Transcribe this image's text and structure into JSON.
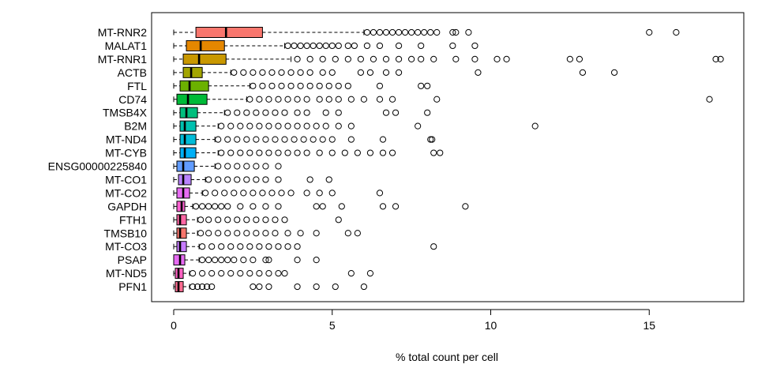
{
  "chart_data": {
    "type": "boxplot",
    "orientation": "horizontal",
    "xlabel": "% total count per cell",
    "ylabel": "",
    "title": "",
    "xlim": [
      -0.7,
      18
    ],
    "xticks": [
      0,
      5,
      10,
      15
    ],
    "grid": false,
    "series": [
      {
        "name": "MT-RNR2",
        "color": "#F8766D",
        "min": 0,
        "q1": 0.7,
        "median": 1.65,
        "q3": 2.8,
        "whisker_high": 6.0,
        "outliers": [
          6.1,
          6.3,
          6.5,
          6.7,
          6.9,
          7.1,
          7.3,
          7.5,
          7.7,
          7.9,
          8.1,
          8.3,
          8.8,
          8.9,
          9.3,
          15.0,
          15.85
        ]
      },
      {
        "name": "MALAT1",
        "color": "#E58700",
        "min": 0,
        "q1": 0.4,
        "median": 0.85,
        "q3": 1.6,
        "whisker_high": 3.5,
        "outliers": [
          3.6,
          3.8,
          4.0,
          4.2,
          4.4,
          4.6,
          4.8,
          5.0,
          5.2,
          5.5,
          5.7,
          6.1,
          6.5,
          7.1,
          7.8,
          8.8,
          9.5
        ]
      },
      {
        "name": "MT-RNR1",
        "color": "#C99800",
        "min": 0,
        "q1": 0.3,
        "median": 0.8,
        "q3": 1.65,
        "whisker_high": 3.7,
        "outliers": [
          3.9,
          4.3,
          4.7,
          5.1,
          5.5,
          5.9,
          6.3,
          6.7,
          7.1,
          7.5,
          7.8,
          8.2,
          8.9,
          9.5,
          10.2,
          10.5,
          12.5,
          12.8,
          17.1,
          17.25
        ]
      },
      {
        "name": "ACTB",
        "color": "#A3A500",
        "min": 0,
        "q1": 0.3,
        "median": 0.55,
        "q3": 0.9,
        "whisker_high": 1.8,
        "outliers": [
          1.9,
          2.2,
          2.5,
          2.8,
          3.1,
          3.4,
          3.7,
          4.0,
          4.3,
          4.7,
          5.0,
          5.9,
          6.2,
          6.7,
          7.1,
          9.6,
          12.9,
          13.9
        ]
      },
      {
        "name": "FTL",
        "color": "#6BB100",
        "min": 0,
        "q1": 0.2,
        "median": 0.5,
        "q3": 1.1,
        "whisker_high": 2.4,
        "outliers": [
          2.5,
          2.8,
          3.1,
          3.4,
          3.7,
          4.0,
          4.3,
          4.6,
          4.9,
          5.2,
          5.5,
          6.5,
          7.8,
          8.0
        ]
      },
      {
        "name": "CD74",
        "color": "#00BA38",
        "min": 0,
        "q1": 0.1,
        "median": 0.45,
        "q3": 1.05,
        "whisker_high": 2.3,
        "outliers": [
          2.4,
          2.7,
          3.0,
          3.3,
          3.6,
          3.9,
          4.2,
          4.6,
          4.9,
          5.2,
          5.6,
          6.0,
          6.5,
          6.9,
          8.3,
          16.9
        ]
      },
      {
        "name": "TMSB4X",
        "color": "#00BF7D",
        "min": 0,
        "q1": 0.2,
        "median": 0.4,
        "q3": 0.75,
        "whisker_high": 1.6,
        "outliers": [
          1.7,
          2.0,
          2.3,
          2.6,
          2.9,
          3.2,
          3.5,
          3.9,
          4.2,
          4.8,
          5.2,
          6.7,
          7.0,
          8.0
        ]
      },
      {
        "name": "B2M",
        "color": "#00C0AF",
        "min": 0,
        "q1": 0.2,
        "median": 0.35,
        "q3": 0.7,
        "whisker_high": 1.4,
        "outliers": [
          1.5,
          1.8,
          2.1,
          2.4,
          2.7,
          3.0,
          3.3,
          3.6,
          3.9,
          4.2,
          4.5,
          4.8,
          5.2,
          5.6,
          7.7,
          11.4
        ]
      },
      {
        "name": "MT-ND4",
        "color": "#00BCD8",
        "min": 0,
        "q1": 0.2,
        "median": 0.35,
        "q3": 0.7,
        "whisker_high": 1.3,
        "outliers": [
          1.4,
          1.7,
          2.0,
          2.3,
          2.6,
          2.9,
          3.2,
          3.5,
          3.8,
          4.1,
          4.4,
          4.7,
          5.0,
          5.6,
          6.6,
          8.1,
          8.15
        ]
      },
      {
        "name": "MT-CYB",
        "color": "#00B0F6",
        "min": 0,
        "q1": 0.2,
        "median": 0.35,
        "q3": 0.7,
        "whisker_high": 1.4,
        "outliers": [
          1.5,
          1.8,
          2.1,
          2.4,
          2.7,
          3.0,
          3.3,
          3.6,
          3.9,
          4.2,
          4.6,
          5.0,
          5.4,
          5.8,
          6.2,
          6.6,
          6.9,
          8.2,
          8.4
        ]
      },
      {
        "name": "ENSG00000225840",
        "color": "#619CFF",
        "min": 0,
        "q1": 0.1,
        "median": 0.3,
        "q3": 0.65,
        "whisker_high": 1.3,
        "outliers": [
          1.4,
          1.7,
          2.0,
          2.3,
          2.6,
          2.9,
          3.3
        ]
      },
      {
        "name": "MT-CO1",
        "color": "#B983FF",
        "min": 0,
        "q1": 0.15,
        "median": 0.3,
        "q3": 0.55,
        "whisker_high": 1.0,
        "outliers": [
          1.1,
          1.4,
          1.7,
          2.0,
          2.3,
          2.6,
          2.9,
          3.3,
          4.3,
          4.9
        ]
      },
      {
        "name": "MT-CO2",
        "color": "#E76BF3",
        "min": 0,
        "q1": 0.1,
        "median": 0.3,
        "q3": 0.5,
        "whisker_high": 0.9,
        "outliers": [
          1.0,
          1.3,
          1.6,
          1.9,
          2.2,
          2.5,
          2.8,
          3.1,
          3.4,
          3.7,
          4.2,
          4.6,
          5.0,
          6.5
        ]
      },
      {
        "name": "GAPDH",
        "color": "#FD61D1",
        "min": 0,
        "q1": 0.1,
        "median": 0.25,
        "q3": 0.35,
        "whisker_high": 0.6,
        "outliers": [
          0.7,
          0.9,
          1.1,
          1.3,
          1.5,
          1.7,
          2.1,
          2.5,
          2.9,
          3.3,
          4.5,
          4.7,
          5.3,
          6.6,
          7.0,
          9.2
        ]
      },
      {
        "name": "FTH1",
        "color": "#FF67A4",
        "min": 0,
        "q1": 0.1,
        "median": 0.2,
        "q3": 0.4,
        "whisker_high": 0.75,
        "outliers": [
          0.85,
          1.1,
          1.4,
          1.7,
          2.0,
          2.3,
          2.6,
          2.9,
          3.2,
          3.5,
          5.2
        ]
      },
      {
        "name": "TMSB10",
        "color": "#F8766D",
        "min": 0,
        "q1": 0.1,
        "median": 0.2,
        "q3": 0.4,
        "whisker_high": 0.75,
        "outliers": [
          0.85,
          1.1,
          1.4,
          1.7,
          2.0,
          2.3,
          2.6,
          2.9,
          3.2,
          3.6,
          4.0,
          4.5,
          5.5,
          5.8
        ]
      },
      {
        "name": "MT-CO3",
        "color": "#C77CFF",
        "min": 0,
        "q1": 0.1,
        "median": 0.2,
        "q3": 0.4,
        "whisker_high": 0.8,
        "outliers": [
          0.9,
          1.2,
          1.5,
          1.8,
          2.1,
          2.4,
          2.7,
          3.0,
          3.3,
          3.6,
          3.9,
          8.2
        ]
      },
      {
        "name": "PSAP",
        "color": "#E76BF3",
        "min": 0,
        "q1": 0.0,
        "median": 0.2,
        "q3": 0.35,
        "whisker_high": 0.8,
        "outliers": [
          0.9,
          1.1,
          1.3,
          1.5,
          1.7,
          1.9,
          2.2,
          2.5,
          2.9,
          3.0,
          3.9,
          4.5
        ]
      },
      {
        "name": "MT-ND5",
        "color": "#FF61C3",
        "min": 0,
        "q1": 0.05,
        "median": 0.15,
        "q3": 0.3,
        "whisker_high": 0.5,
        "outliers": [
          0.6,
          0.9,
          1.2,
          1.5,
          1.8,
          2.1,
          2.4,
          2.7,
          3.0,
          3.3,
          3.5,
          5.6,
          6.2
        ]
      },
      {
        "name": "PFN1",
        "color": "#FF6C91",
        "min": 0,
        "q1": 0.05,
        "median": 0.15,
        "q3": 0.3,
        "whisker_high": 0.5,
        "outliers": [
          0.6,
          0.75,
          0.9,
          1.05,
          1.2,
          2.5,
          2.7,
          3.0,
          3.9,
          4.5,
          5.1,
          6.0
        ]
      }
    ]
  }
}
